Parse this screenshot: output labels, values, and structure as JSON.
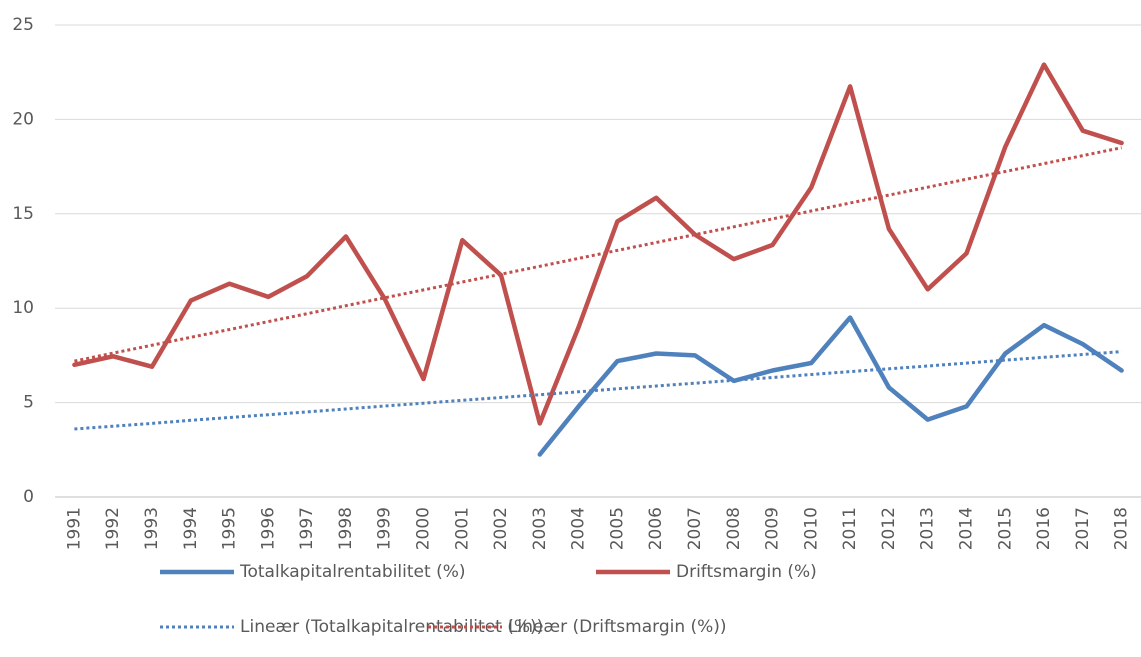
{
  "chart_data": {
    "type": "line",
    "categories": [
      "1991",
      "1992",
      "1993",
      "1994",
      "1995",
      "1996",
      "1997",
      "1998",
      "1999",
      "2000",
      "2001",
      "2002",
      "2003",
      "2004",
      "2005",
      "2006",
      "2007",
      "2008",
      "2009",
      "2010",
      "2011",
      "2012",
      "2013",
      "2014",
      "2015",
      "2016",
      "2017",
      "2018"
    ],
    "series": [
      {
        "name": "Totalkapitalrentabilitet (%)",
        "color": "#4f81bd",
        "style": "solid",
        "values": [
          null,
          null,
          null,
          null,
          null,
          null,
          null,
          null,
          null,
          null,
          null,
          null,
          2.25,
          4.8,
          7.2,
          7.6,
          7.5,
          6.15,
          6.7,
          7.1,
          9.5,
          5.8,
          4.1,
          4.8,
          7.6,
          9.1,
          8.1,
          6.7
        ]
      },
      {
        "name": "Driftsmargin (%)",
        "color": "#c0504d",
        "style": "solid",
        "values": [
          7.0,
          7.45,
          6.9,
          10.4,
          11.3,
          10.6,
          11.7,
          13.8,
          10.5,
          6.25,
          13.6,
          11.75,
          3.9,
          9.0,
          14.6,
          15.85,
          13.9,
          12.6,
          13.35,
          16.4,
          21.75,
          14.2,
          11.0,
          12.9,
          18.55,
          22.9,
          19.4,
          18.75
        ]
      },
      {
        "name": "Lineær (Totalkapitalrentabilitet (%))",
        "color": "#4f81bd",
        "style": "dotted",
        "values": [
          3.6,
          3.75,
          3.9,
          4.06,
          4.21,
          4.36,
          4.51,
          4.66,
          4.82,
          4.97,
          5.12,
          5.27,
          5.42,
          5.57,
          5.73,
          5.88,
          6.03,
          6.18,
          6.33,
          6.49,
          6.64,
          6.79,
          6.94,
          7.09,
          7.25,
          7.4,
          7.55,
          7.7
        ]
      },
      {
        "name": "Lineær (Driftsmargin (%))",
        "color": "#c0504d",
        "style": "dotted",
        "values": [
          7.2,
          7.62,
          8.04,
          8.46,
          8.87,
          9.29,
          9.71,
          10.13,
          10.55,
          10.97,
          11.39,
          11.8,
          12.22,
          12.64,
          13.06,
          13.48,
          13.9,
          14.31,
          14.73,
          15.15,
          15.57,
          15.99,
          16.41,
          16.83,
          17.24,
          17.66,
          18.08,
          18.5
        ]
      }
    ],
    "ylim": [
      0,
      25
    ],
    "yticks": [
      0,
      5,
      10,
      15,
      20,
      25
    ],
    "grid": true,
    "legend": "bottom"
  }
}
